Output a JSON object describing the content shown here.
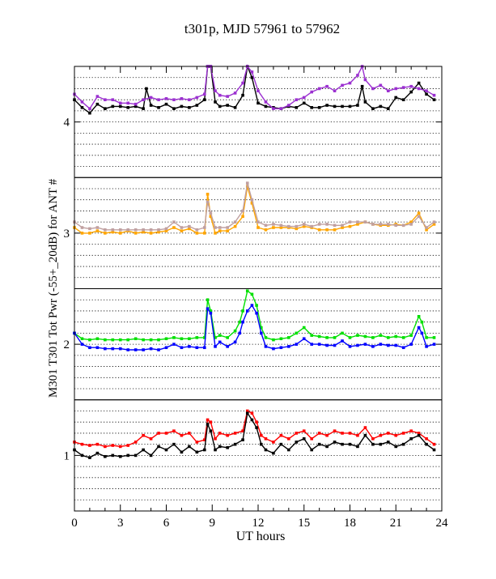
{
  "chart_data": {
    "type": "line",
    "title": "t301p, MJD 57961 to 57962",
    "xlabel": "UT hours",
    "ylabel": "M301  T301  Tot Pwr (-55+_20dB) for ANT #",
    "xlim": [
      0,
      24
    ],
    "ylim": [
      0.5,
      4.5
    ],
    "x_ticks": [
      "0",
      "3",
      "6",
      "9",
      "12",
      "15",
      "18",
      "21",
      "24"
    ],
    "y_ticks": [
      "1",
      "2",
      "3",
      "4"
    ],
    "grid": "dotted horizontal",
    "panels": [
      {
        "antenna": "4",
        "series": [
          {
            "color": "#000000",
            "x": [
              0.0,
              0.5,
              1.0,
              1.5,
              2.0,
              2.5,
              3.0,
              3.5,
              4.0,
              4.5,
              4.7,
              5.0,
              5.5,
              6.0,
              6.5,
              7.0,
              7.5,
              8.0,
              8.5,
              8.7,
              8.9,
              9.2,
              9.5,
              10.0,
              10.5,
              11.0,
              11.3,
              11.6,
              12.0,
              12.5,
              13.0,
              13.5,
              14.0,
              14.5,
              15.0,
              15.5,
              16.0,
              16.5,
              17.0,
              17.5,
              18.0,
              18.5,
              18.8,
              19.0,
              19.5,
              20.0,
              20.5,
              21.0,
              21.5,
              22.0,
              22.5,
              23.0,
              23.5
            ],
            "y": [
              4.2,
              4.13,
              4.08,
              4.16,
              4.12,
              4.14,
              4.14,
              4.13,
              4.14,
              4.12,
              4.3,
              4.15,
              4.13,
              4.16,
              4.12,
              4.14,
              4.13,
              4.15,
              4.2,
              4.5,
              4.55,
              4.18,
              4.14,
              4.15,
              4.13,
              4.24,
              4.6,
              4.4,
              4.17,
              4.14,
              4.13,
              4.12,
              4.14,
              4.13,
              4.17,
              4.13,
              4.13,
              4.15,
              4.14,
              4.14,
              4.14,
              4.15,
              4.32,
              4.18,
              4.12,
              4.14,
              4.12,
              4.22,
              4.2,
              4.27,
              4.35,
              4.25,
              4.2
            ]
          },
          {
            "color": "#9b30d0",
            "x": [
              0.0,
              0.5,
              1.0,
              1.5,
              2.0,
              2.5,
              3.0,
              3.5,
              4.0,
              4.5,
              5.0,
              5.5,
              6.0,
              6.5,
              7.0,
              7.5,
              8.0,
              8.5,
              8.7,
              8.9,
              9.2,
              9.5,
              10.0,
              10.5,
              11.0,
              11.3,
              11.6,
              12.0,
              12.5,
              13.0,
              13.5,
              14.0,
              14.5,
              15.0,
              15.5,
              16.0,
              16.5,
              17.0,
              17.5,
              18.0,
              18.5,
              18.8,
              19.0,
              19.5,
              20.0,
              20.5,
              21.0,
              21.5,
              22.0,
              22.5,
              23.0,
              23.5
            ],
            "y": [
              4.25,
              4.18,
              4.12,
              4.23,
              4.2,
              4.2,
              4.17,
              4.17,
              4.16,
              4.2,
              4.22,
              4.2,
              4.21,
              4.2,
              4.21,
              4.2,
              4.22,
              4.25,
              4.55,
              4.57,
              4.28,
              4.24,
              4.23,
              4.26,
              4.35,
              4.65,
              4.45,
              4.28,
              4.18,
              4.12,
              4.12,
              4.15,
              4.2,
              4.22,
              4.27,
              4.3,
              4.32,
              4.28,
              4.33,
              4.35,
              4.42,
              4.55,
              4.38,
              4.3,
              4.33,
              4.28,
              4.3,
              4.31,
              4.32,
              4.3,
              4.28,
              4.24
            ]
          }
        ]
      },
      {
        "antenna": "3",
        "series": [
          {
            "color": "#ffa500",
            "x": [
              0.0,
              0.5,
              1.0,
              1.5,
              2.0,
              2.5,
              3.0,
              3.5,
              4.0,
              4.5,
              5.0,
              5.5,
              6.0,
              6.5,
              7.0,
              7.5,
              8.0,
              8.5,
              8.7,
              8.9,
              9.2,
              9.5,
              10.0,
              10.5,
              11.0,
              11.3,
              11.6,
              12.0,
              12.5,
              13.0,
              13.5,
              14.0,
              14.5,
              15.0,
              15.5,
              16.0,
              16.5,
              17.0,
              17.5,
              18.0,
              18.5,
              19.0,
              19.5,
              20.0,
              20.5,
              21.0,
              21.5,
              22.0,
              22.5,
              23.0,
              23.5
            ],
            "y": [
              3.05,
              3.0,
              3.0,
              3.02,
              3.0,
              3.01,
              3.0,
              3.02,
              3.0,
              3.01,
              3.0,
              3.01,
              3.02,
              3.05,
              3.02,
              3.04,
              3.0,
              3.0,
              3.35,
              3.15,
              3.0,
              3.02,
              3.02,
              3.06,
              3.15,
              3.42,
              3.27,
              3.05,
              3.03,
              3.05,
              3.05,
              3.05,
              3.04,
              3.06,
              3.05,
              3.03,
              3.03,
              3.03,
              3.05,
              3.06,
              3.08,
              3.1,
              3.08,
              3.07,
              3.07,
              3.08,
              3.07,
              3.1,
              3.18,
              3.03,
              3.08
            ]
          },
          {
            "color": "#c0a0a0",
            "x": [
              0.0,
              0.5,
              1.0,
              1.5,
              2.0,
              2.5,
              3.0,
              3.5,
              4.0,
              4.5,
              5.0,
              5.5,
              6.0,
              6.5,
              7.0,
              7.5,
              8.0,
              8.5,
              8.7,
              8.9,
              9.2,
              9.5,
              10.0,
              10.5,
              11.0,
              11.3,
              11.6,
              12.0,
              12.5,
              13.0,
              13.5,
              14.0,
              14.5,
              15.0,
              15.5,
              16.0,
              16.5,
              17.0,
              17.5,
              18.0,
              18.5,
              19.0,
              19.5,
              20.0,
              20.5,
              21.0,
              21.5,
              22.0,
              22.5,
              23.0,
              23.5
            ],
            "y": [
              3.1,
              3.05,
              3.04,
              3.05,
              3.03,
              3.03,
              3.03,
              3.03,
              3.03,
              3.03,
              3.03,
              3.03,
              3.04,
              3.1,
              3.05,
              3.06,
              3.03,
              3.05,
              3.28,
              3.18,
              3.05,
              3.05,
              3.05,
              3.1,
              3.2,
              3.45,
              3.3,
              3.1,
              3.07,
              3.08,
              3.07,
              3.06,
              3.06,
              3.08,
              3.06,
              3.08,
              3.08,
              3.07,
              3.07,
              3.1,
              3.1,
              3.1,
              3.08,
              3.08,
              3.08,
              3.07,
              3.07,
              3.08,
              3.15,
              3.05,
              3.1
            ]
          }
        ]
      },
      {
        "antenna": "2",
        "series": [
          {
            "color": "#00e000",
            "x": [
              0.0,
              0.5,
              1.0,
              1.5,
              2.0,
              2.5,
              3.0,
              3.5,
              4.0,
              4.5,
              5.0,
              5.5,
              6.0,
              6.5,
              7.0,
              7.5,
              8.0,
              8.5,
              8.7,
              8.9,
              9.2,
              9.5,
              10.0,
              10.5,
              10.8,
              11.0,
              11.3,
              11.6,
              11.9,
              12.2,
              12.5,
              13.0,
              13.5,
              14.0,
              14.5,
              15.0,
              15.5,
              16.0,
              16.5,
              17.0,
              17.5,
              18.0,
              18.5,
              19.0,
              19.5,
              20.0,
              20.5,
              21.0,
              21.5,
              22.0,
              22.5,
              22.7,
              23.0,
              23.5
            ],
            "y": [
              2.1,
              2.05,
              2.04,
              2.05,
              2.04,
              2.04,
              2.04,
              2.04,
              2.05,
              2.04,
              2.04,
              2.04,
              2.05,
              2.06,
              2.05,
              2.05,
              2.06,
              2.06,
              2.4,
              2.3,
              2.06,
              2.08,
              2.06,
              2.12,
              2.2,
              2.3,
              2.48,
              2.45,
              2.35,
              2.15,
              2.06,
              2.04,
              2.05,
              2.06,
              2.1,
              2.15,
              2.08,
              2.07,
              2.06,
              2.06,
              2.1,
              2.06,
              2.08,
              2.07,
              2.06,
              2.08,
              2.06,
              2.07,
              2.06,
              2.08,
              2.25,
              2.2,
              2.06,
              2.06
            ]
          },
          {
            "color": "#0000ff",
            "x": [
              0.0,
              0.5,
              1.0,
              1.5,
              2.0,
              2.5,
              3.0,
              3.5,
              4.0,
              4.5,
              5.0,
              5.5,
              6.0,
              6.5,
              7.0,
              7.5,
              8.0,
              8.5,
              8.7,
              8.9,
              9.2,
              9.5,
              10.0,
              10.5,
              10.8,
              11.0,
              11.3,
              11.6,
              11.9,
              12.2,
              12.5,
              13.0,
              13.5,
              14.0,
              14.5,
              15.0,
              15.5,
              16.0,
              16.5,
              17.0,
              17.5,
              18.0,
              18.5,
              19.0,
              19.5,
              20.0,
              20.5,
              21.0,
              21.5,
              22.0,
              22.5,
              22.7,
              23.0,
              23.5
            ],
            "y": [
              2.1,
              2.0,
              1.97,
              1.97,
              1.96,
              1.96,
              1.96,
              1.95,
              1.95,
              1.95,
              1.96,
              1.95,
              1.97,
              2.0,
              1.97,
              1.98,
              1.97,
              1.97,
              2.32,
              2.28,
              1.98,
              2.02,
              1.98,
              2.02,
              2.1,
              2.2,
              2.3,
              2.35,
              2.28,
              2.1,
              1.98,
              1.96,
              1.97,
              1.98,
              2.0,
              2.05,
              2.0,
              2.0,
              1.99,
              1.99,
              2.03,
              1.98,
              1.99,
              2.0,
              1.98,
              2.0,
              1.99,
              1.99,
              1.97,
              2.0,
              2.15,
              2.1,
              1.98,
              2.0
            ]
          }
        ]
      },
      {
        "antenna": "1",
        "series": [
          {
            "color": "#ff0000",
            "x": [
              0.0,
              0.5,
              1.0,
              1.5,
              2.0,
              2.5,
              3.0,
              3.5,
              4.0,
              4.5,
              5.0,
              5.5,
              6.0,
              6.5,
              7.0,
              7.5,
              8.0,
              8.5,
              8.7,
              8.9,
              9.2,
              9.5,
              10.0,
              10.5,
              11.0,
              11.3,
              11.6,
              11.9,
              12.2,
              12.5,
              13.0,
              13.5,
              14.0,
              14.5,
              15.0,
              15.5,
              16.0,
              16.5,
              17.0,
              17.5,
              18.0,
              18.5,
              19.0,
              19.5,
              20.0,
              20.5,
              21.0,
              21.5,
              22.0,
              22.5,
              23.0,
              23.5
            ],
            "y": [
              1.12,
              1.1,
              1.09,
              1.1,
              1.08,
              1.09,
              1.08,
              1.09,
              1.12,
              1.18,
              1.15,
              1.2,
              1.2,
              1.22,
              1.18,
              1.2,
              1.12,
              1.14,
              1.32,
              1.3,
              1.15,
              1.2,
              1.18,
              1.2,
              1.22,
              1.4,
              1.38,
              1.3,
              1.18,
              1.15,
              1.12,
              1.18,
              1.15,
              1.2,
              1.22,
              1.15,
              1.2,
              1.18,
              1.22,
              1.2,
              1.2,
              1.18,
              1.25,
              1.15,
              1.18,
              1.2,
              1.18,
              1.2,
              1.22,
              1.2,
              1.15,
              1.1
            ]
          },
          {
            "color": "#000000",
            "x": [
              0.0,
              0.5,
              1.0,
              1.5,
              2.0,
              2.5,
              3.0,
              3.5,
              4.0,
              4.5,
              5.0,
              5.5,
              6.0,
              6.5,
              7.0,
              7.5,
              8.0,
              8.5,
              8.7,
              8.9,
              9.2,
              9.5,
              10.0,
              10.5,
              11.0,
              11.3,
              11.6,
              11.9,
              12.2,
              12.5,
              13.0,
              13.5,
              14.0,
              14.5,
              15.0,
              15.5,
              16.0,
              16.5,
              17.0,
              17.5,
              18.0,
              18.5,
              19.0,
              19.5,
              20.0,
              20.5,
              21.0,
              21.5,
              22.0,
              22.5,
              23.0,
              23.5
            ],
            "y": [
              1.05,
              1.0,
              0.98,
              1.02,
              0.99,
              1.0,
              0.99,
              1.0,
              1.0,
              1.05,
              1.0,
              1.08,
              1.05,
              1.1,
              1.03,
              1.08,
              1.03,
              1.05,
              1.28,
              1.22,
              1.05,
              1.08,
              1.07,
              1.1,
              1.14,
              1.38,
              1.32,
              1.25,
              1.1,
              1.05,
              1.02,
              1.1,
              1.05,
              1.12,
              1.15,
              1.05,
              1.1,
              1.08,
              1.12,
              1.1,
              1.1,
              1.08,
              1.18,
              1.1,
              1.1,
              1.12,
              1.08,
              1.1,
              1.15,
              1.18,
              1.1,
              1.05
            ]
          }
        ]
      }
    ]
  }
}
